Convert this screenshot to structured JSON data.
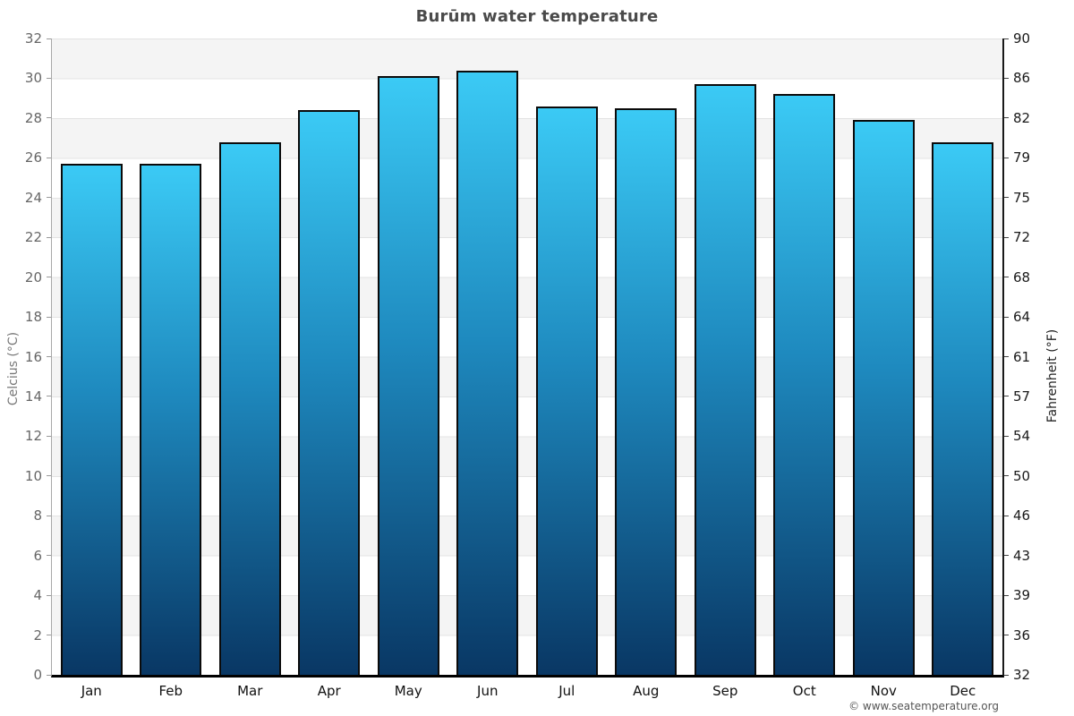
{
  "title": "Burūm water temperature",
  "footer": "© www.seatemperature.org",
  "colors": {
    "bar_top": "#3BCAF5",
    "bar_mid": "#1E89BE",
    "bar_bottom": "#093764",
    "bar_border": "#0b0b0b",
    "band": "#f4f4f4",
    "grid": "#e3e3e3",
    "title": "#4a4a4a"
  },
  "chart_data": {
    "type": "bar",
    "title": "Burūm water temperature",
    "categories": [
      "Jan",
      "Feb",
      "Mar",
      "Apr",
      "May",
      "Jun",
      "Jul",
      "Aug",
      "Sep",
      "Oct",
      "Nov",
      "Dec"
    ],
    "values": [
      25.6,
      25.6,
      26.7,
      28.3,
      30.0,
      30.3,
      28.5,
      28.4,
      29.6,
      29.1,
      27.8,
      26.7
    ],
    "unit": "°C",
    "ylabel_left": "Celcius (°C)",
    "ylabel_right": "Fahrenheit (°F)",
    "ylim": [
      0,
      32
    ],
    "yticks_left": [
      0,
      2,
      4,
      6,
      8,
      10,
      12,
      14,
      16,
      18,
      20,
      22,
      24,
      26,
      28,
      30,
      32
    ],
    "yticks_right": [
      32,
      36,
      39,
      43,
      46,
      50,
      54,
      57,
      61,
      64,
      68,
      72,
      75,
      79,
      82,
      86,
      90
    ],
    "grid": "horizontal gridlines every 2°C with alternating gray/white bands",
    "legend": null,
    "bar_style": "vertical gradient, light cyan top to dark navy bottom, black outline"
  }
}
